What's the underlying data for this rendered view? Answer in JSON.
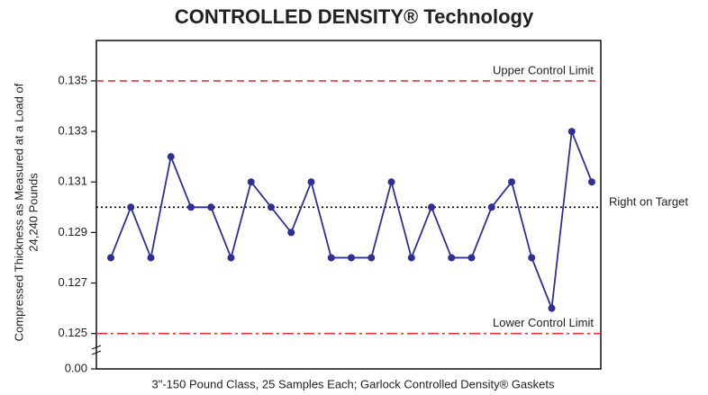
{
  "chart_data": {
    "type": "line",
    "title": "CONTROLLED DENSITY® Technology",
    "x_label": "3\"-150 Pound Class, 25 Samples Each; Garlock Controlled Density® Gaskets",
    "y_label": [
      "Compressed Thickness as Measured at a Load of",
      "24,240 Pounds"
    ],
    "series": [
      {
        "color": "#2e3192",
        "values": [
          0.128,
          0.13,
          0.128,
          0.132,
          0.13,
          0.13,
          0.128,
          0.131,
          0.13,
          0.129,
          0.131,
          0.128,
          0.128,
          0.128,
          0.131,
          0.128,
          0.13,
          0.128,
          0.128,
          0.13,
          0.131,
          0.128,
          0.126,
          0.133,
          0.131
        ]
      }
    ],
    "ylim": [
      0.1236,
      0.1366
    ],
    "yticks": [
      {
        "value": 0,
        "label": "0.00"
      },
      0.125,
      0.127,
      0.129,
      0.131,
      0.133,
      0.135
    ],
    "axis_break": true,
    "reference_lines": [
      {
        "label": "Upper Control Limit",
        "value": 0.135,
        "color": "#e8323c",
        "style": "dashed"
      },
      {
        "label": "Right on Target",
        "value": 0.13,
        "color": "#000000",
        "style": "dotted"
      },
      {
        "label": "Lower Control Limit",
        "value": 0.125,
        "color": "#e8323c",
        "style": "dashdot"
      }
    ]
  }
}
